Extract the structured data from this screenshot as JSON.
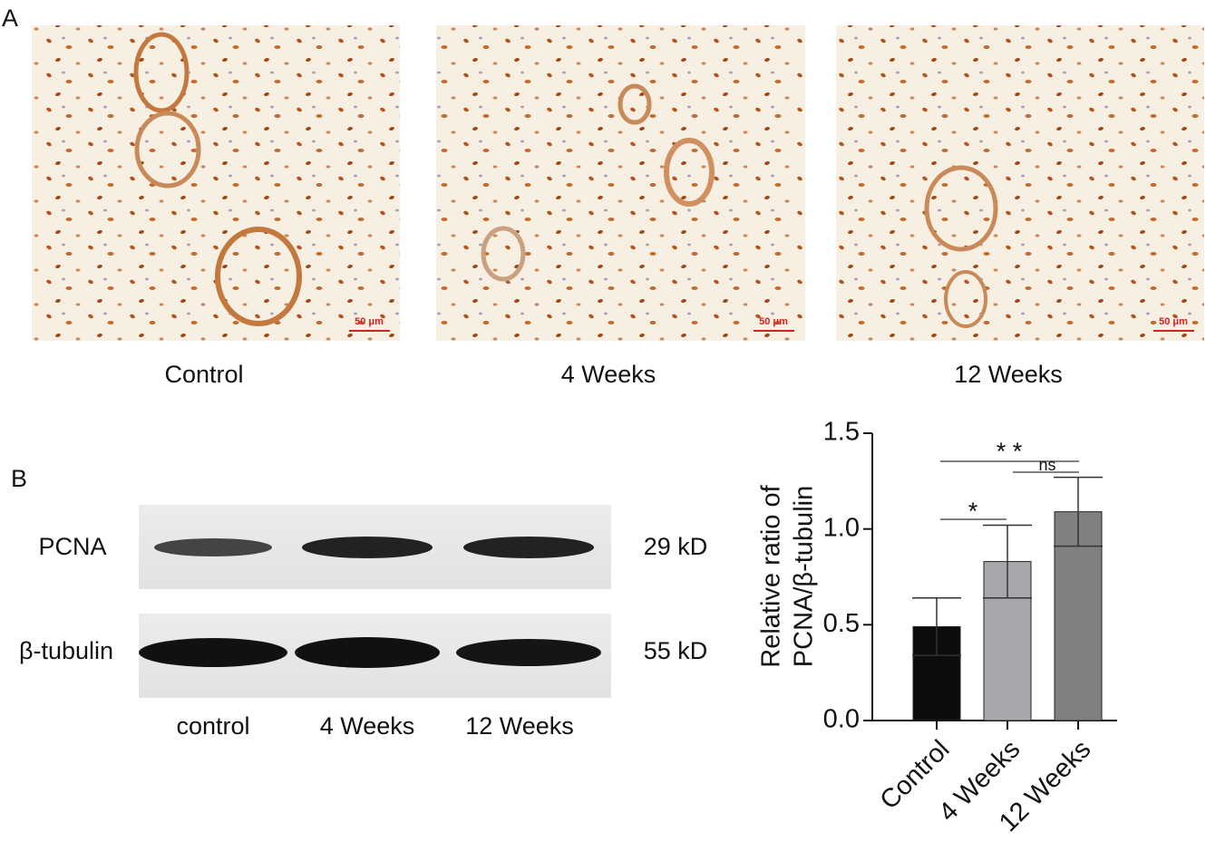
{
  "panel_a": {
    "label": "A",
    "images": [
      {
        "caption": "Control",
        "scale_bar": "50 μm"
      },
      {
        "caption": "4 Weeks",
        "scale_bar": "50 μm"
      },
      {
        "caption": "12 Weeks",
        "scale_bar": "50 μm"
      }
    ]
  },
  "panel_b": {
    "label": "B",
    "blot": {
      "rows": [
        {
          "protein": "PCNA",
          "size": "29 kD"
        },
        {
          "protein": "β-tubulin",
          "size": "55 kD"
        }
      ],
      "lanes": [
        "control",
        "4 Weeks",
        "12 Weeks"
      ]
    }
  },
  "chart_data": {
    "type": "bar",
    "y_label": [
      "Relative ratio of",
      "PCNA/β-tubulin"
    ],
    "categories": [
      "Control",
      "4 Weeks",
      "12 Weeks"
    ],
    "values": [
      0.49,
      0.83,
      1.09
    ],
    "errors": [
      0.15,
      0.19,
      0.18
    ],
    "colors": [
      "#0d0d0d",
      "#a6a8ab",
      "#808080"
    ],
    "ylim": [
      0,
      1.5
    ],
    "yticks": [
      {
        "value": 0,
        "label": "0.0"
      },
      0.5,
      {
        "value": 1,
        "label": "1.0"
      },
      1.5
    ],
    "annotations": [
      "* *",
      "ns",
      "*"
    ]
  }
}
